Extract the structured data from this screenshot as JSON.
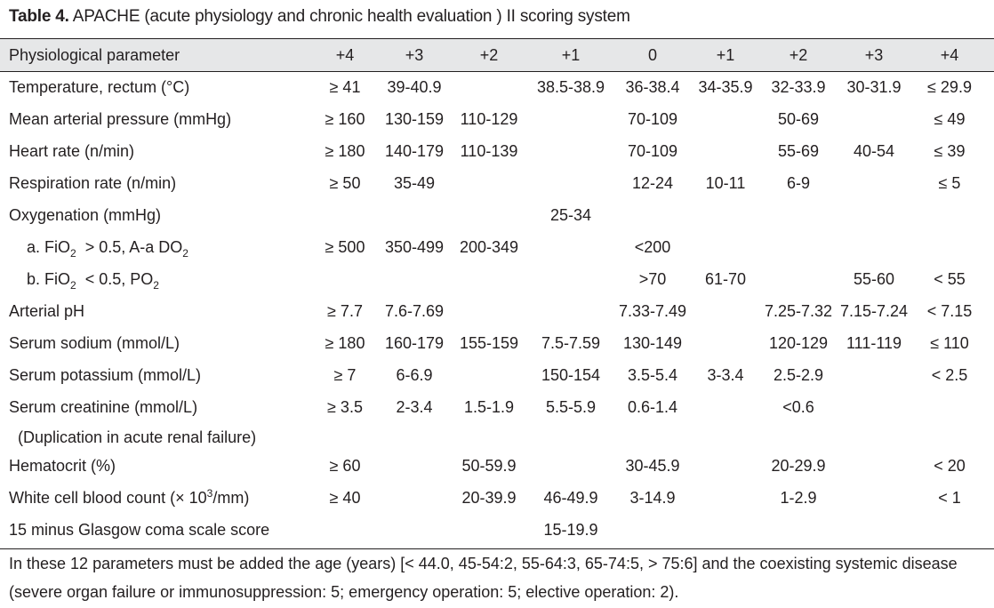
{
  "caption": {
    "label": "Table 4.",
    "text": " APACHE (acute physiology and chronic health evaluation ) II scoring system"
  },
  "header": [
    "Physiological parameter",
    "+4",
    "+3",
    "+2",
    "+1",
    "0",
    "+1",
    "+2",
    "+3",
    "+4"
  ],
  "rows": [
    {
      "param": "Temperature, rectum (°C)",
      "vals": [
        "≥ 41",
        "39-40.9",
        "",
        "38.5-38.9",
        "36-38.4",
        "34-35.9",
        "32-33.9",
        "30-31.9",
        "≤ 29.9"
      ]
    },
    {
      "param": "Mean arterial pressure (mmHg)",
      "vals": [
        "≥ 160",
        "130-159",
        "110-129",
        "",
        "70-109",
        "",
        "50-69",
        "",
        "≤ 49"
      ]
    },
    {
      "param": "Heart rate (n/min)",
      "vals": [
        "≥ 180",
        "140-179",
        "110-139",
        "",
        "70-109",
        "",
        "55-69",
        "40-54",
        "≤ 39"
      ]
    },
    {
      "param": "Respiration rate (n/min)",
      "vals": [
        "≥ 50",
        "35-49",
        "",
        "",
        "12-24",
        "10-11",
        "6-9",
        "",
        "≤ 5"
      ]
    },
    {
      "param": "Oxygenation (mmHg)",
      "vals": [
        "",
        "",
        "",
        "25-34",
        "",
        "",
        "",
        "",
        ""
      ]
    },
    {
      "param": "  a. FiO2 > 0.5, A-a DO2",
      "vals": [
        "≥ 500",
        "350-499",
        "200-349",
        "",
        "<200",
        "",
        "",
        "",
        ""
      ]
    },
    {
      "param": "  b. FiO2 < 0.5, PO2",
      "vals": [
        "",
        "",
        "",
        "",
        ">70",
        "61-70",
        "",
        "55-60",
        "< 55"
      ]
    },
    {
      "param": "Arterial pH",
      "vals": [
        "≥ 7.7",
        "7.6-7.69",
        "",
        "",
        "7.33-7.49",
        "",
        "7.25-7.32",
        "7.15-7.24",
        "< 7.15"
      ]
    },
    {
      "param": "Serum sodium (mmol/L)",
      "vals": [
        "≥ 180",
        "160-179",
        "155-159",
        "7.5-7.59",
        "130-149",
        "",
        "120-129",
        "111-119",
        "≤ 110"
      ]
    },
    {
      "param": "Serum potassium (mmol/L)",
      "vals": [
        "≥ 7",
        "6-6.9",
        "",
        "150-154",
        "3.5-5.4",
        "3-3.4",
        "2.5-2.9",
        "",
        "< 2.5"
      ]
    },
    {
      "param": "Serum creatinine (mmol/L)",
      "vals": [
        "≥ 3.5",
        "2-3.4",
        "1.5-1.9",
        "5.5-5.9",
        "0.6-1.4",
        "",
        "<0.6",
        "",
        ""
      ]
    },
    {
      "param": " (Duplication in acute renal failure)",
      "vals": [
        "",
        "",
        "",
        "",
        "",
        "",
        "",
        "",
        ""
      ]
    },
    {
      "param": "Hematocrit (%)",
      "vals": [
        "≥ 60",
        "",
        "50-59.9",
        "",
        "30-45.9",
        "",
        "20-29.9",
        "",
        "< 20"
      ]
    },
    {
      "param": "White cell blood count (× 10³/mm)",
      "vals": [
        "≥ 40",
        "",
        "20-39.9",
        "46-49.9",
        "3-14.9",
        "",
        "1-2.9",
        "",
        "< 1"
      ]
    },
    {
      "param": "15 minus Glasgow coma scale score",
      "vals": [
        "",
        "",
        "",
        "15-19.9",
        "",
        "",
        "",
        "",
        ""
      ]
    }
  ],
  "footnote": "In these 12 parameters must be added the age (years) [< 44.0, 45-54:2, 55-64:3, 65-74:5, > 75:6] and the coexisting systemic disease (severe organ failure or immunosuppression: 5; emergency operation: 5; elective operation: 2)."
}
